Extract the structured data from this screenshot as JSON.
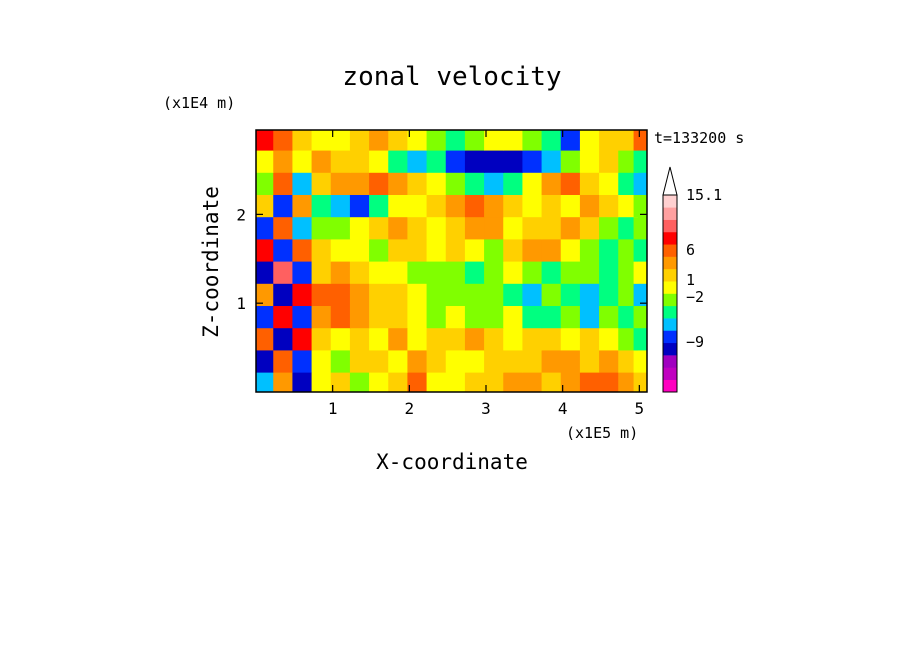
{
  "chart_data": {
    "type": "heatmap",
    "title": "zonal velocity",
    "xlabel": "X-coordinate",
    "ylabel": "Z-coordinate",
    "x_scale_label": "(x1E5 m)",
    "y_scale_label": "(x1E4 m)",
    "time_label": "t=133200 s",
    "xlim": [
      0,
      5.1
    ],
    "ylim": [
      0,
      2.95
    ],
    "x_ticks": [
      1,
      2,
      3,
      4,
      5
    ],
    "x_tick_labels": [
      "1",
      "2",
      "3",
      "4",
      "5"
    ],
    "y_ticks": [
      1,
      2
    ],
    "y_tick_labels": [
      "1",
      "2"
    ],
    "colorbar": {
      "colors": [
        "#ff00c0",
        "#c000c0",
        "#a000c0",
        "#0000c0",
        "#0030ff",
        "#00c0ff",
        "#00ff80",
        "#80ff00",
        "#ffff00",
        "#ffd000",
        "#ff9900",
        "#ff6000",
        "#ff0000",
        "#ff6060",
        "#ffa0a0",
        "#ffd0d0"
      ],
      "labels": [
        "15.1",
        "6",
        "1",
        "−2",
        "−9"
      ],
      "extend": "max"
    },
    "x": [
      0.1,
      0.35,
      0.6,
      0.85,
      1.1,
      1.35,
      1.6,
      1.85,
      2.1,
      2.35,
      2.6,
      2.85,
      3.1,
      3.35,
      3.6,
      3.85,
      4.1,
      4.35,
      4.6,
      4.85,
      5.05
    ],
    "z": [
      0.1,
      0.35,
      0.6,
      0.85,
      1.1,
      1.35,
      1.6,
      1.85,
      2.1,
      2.35,
      2.6,
      2.85
    ],
    "values": [
      [
        -2,
        3,
        -6,
        1,
        2,
        0,
        1,
        2,
        4,
        1,
        1,
        2,
        2,
        3,
        3,
        2,
        3,
        4,
        5,
        3,
        2
      ],
      [
        -6,
        5,
        -3,
        1,
        0,
        2,
        2,
        1,
        3,
        2,
        1,
        1,
        2,
        2,
        2,
        3,
        3,
        2,
        3,
        2,
        1
      ],
      [
        4,
        -7,
        6,
        2,
        1,
        2,
        1,
        3,
        1,
        2,
        2,
        3,
        2,
        1,
        2,
        2,
        1,
        2,
        1,
        0,
        -1
      ],
      [
        -5,
        6,
        -4,
        3,
        4,
        3,
        2,
        2,
        1,
        0,
        1,
        0,
        0,
        1,
        -1,
        -1,
        0,
        -2,
        0,
        -1,
        0
      ],
      [
        3,
        -6,
        6,
        4,
        5,
        3,
        2,
        2,
        1,
        0,
        0,
        0,
        0,
        -1,
        -2,
        0,
        -1,
        -2,
        -1,
        0,
        -2
      ],
      [
        -7,
        8,
        -3,
        2,
        3,
        2,
        1,
        1,
        0,
        0,
        0,
        -1,
        0,
        1,
        0,
        -1,
        0,
        0,
        -1,
        0,
        1
      ],
      [
        6,
        -5,
        5,
        2,
        1,
        1,
        0,
        2,
        2,
        1,
        2,
        1,
        0,
        2,
        3,
        3,
        1,
        0,
        -1,
        0,
        -1
      ],
      [
        -4,
        5,
        -2,
        0,
        0,
        1,
        2,
        3,
        2,
        1,
        2,
        3,
        3,
        1,
        2,
        2,
        3,
        2,
        0,
        -1,
        0
      ],
      [
        2,
        -3,
        3,
        -1,
        -2,
        -3,
        -1,
        1,
        1,
        2,
        3,
        4,
        3,
        2,
        1,
        2,
        1,
        3,
        2,
        1,
        0
      ],
      [
        0,
        4,
        -2,
        2,
        3,
        3,
        4,
        3,
        2,
        1,
        0,
        -1,
        -2,
        -1,
        1,
        3,
        4,
        2,
        1,
        -1,
        -2
      ],
      [
        1,
        3,
        1,
        3,
        2,
        2,
        1,
        -1,
        -2,
        -1,
        -4,
        -6,
        -7,
        -6,
        -3,
        -2,
        0,
        1,
        2,
        0,
        -1
      ],
      [
        6,
        4,
        2,
        1,
        1,
        2,
        3,
        2,
        1,
        0,
        -1,
        0,
        1,
        1,
        0,
        -1,
        -3,
        1,
        2,
        2,
        4
      ]
    ]
  }
}
